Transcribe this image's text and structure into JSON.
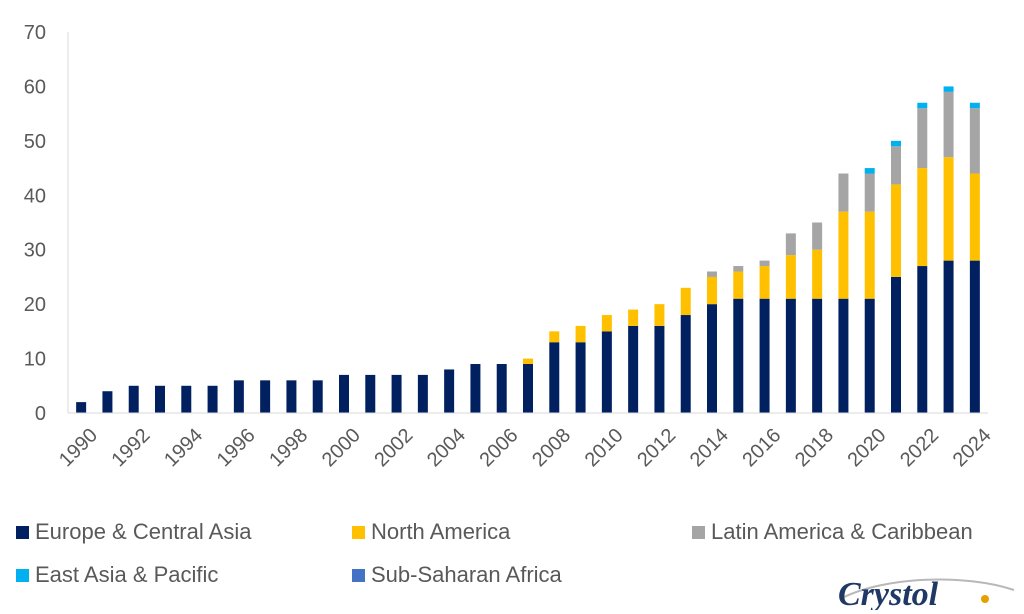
{
  "chart_data": {
    "type": "bar",
    "stacked": true,
    "title": "",
    "xlabel": "",
    "ylabel": "",
    "ylim": [
      0,
      70
    ],
    "yticks": [
      0,
      10,
      20,
      30,
      40,
      50,
      60,
      70
    ],
    "grid": false,
    "legend_position": "bottom",
    "categories": [
      "1990",
      "1991",
      "1992",
      "1993",
      "1994",
      "1995",
      "1996",
      "1997",
      "1998",
      "1999",
      "2000",
      "2001",
      "2002",
      "2003",
      "2004",
      "2005",
      "2006",
      "2007",
      "2008",
      "2009",
      "2010",
      "2011",
      "2012",
      "2013",
      "2014",
      "2015",
      "2016",
      "2017",
      "2018",
      "2019",
      "2020",
      "2021",
      "2022",
      "2023",
      "2024"
    ],
    "tick_labels": [
      "1990",
      "1992",
      "1994",
      "1996",
      "1998",
      "2000",
      "2002",
      "2004",
      "2006",
      "2008",
      "2010",
      "2012",
      "2014",
      "2016",
      "2018",
      "2020",
      "2022",
      "2024"
    ],
    "series": [
      {
        "name": "Europe & Central Asia",
        "color": "#002060",
        "values": [
          2,
          4,
          5,
          5,
          5,
          5,
          6,
          6,
          6,
          6,
          7,
          7,
          7,
          7,
          8,
          9,
          9,
          9,
          13,
          13,
          15,
          16,
          16,
          18,
          20,
          21,
          21,
          21,
          21,
          21,
          21,
          25,
          27,
          28,
          28
        ]
      },
      {
        "name": "North America",
        "color": "#FFC000",
        "values": [
          0,
          0,
          0,
          0,
          0,
          0,
          0,
          0,
          0,
          0,
          0,
          0,
          0,
          0,
          0,
          0,
          0,
          1,
          2,
          3,
          3,
          3,
          4,
          5,
          5,
          5,
          6,
          8,
          9,
          16,
          16,
          17,
          18,
          19,
          16
        ]
      },
      {
        "name": "Latin America & Caribbean",
        "color": "#A5A5A5",
        "values": [
          0,
          0,
          0,
          0,
          0,
          0,
          0,
          0,
          0,
          0,
          0,
          0,
          0,
          0,
          0,
          0,
          0,
          0,
          0,
          0,
          0,
          0,
          0,
          0,
          1,
          1,
          1,
          4,
          5,
          7,
          7,
          7,
          11,
          12,
          12
        ]
      },
      {
        "name": "East Asia & Pacific",
        "color": "#00B0F0",
        "values": [
          0,
          0,
          0,
          0,
          0,
          0,
          0,
          0,
          0,
          0,
          0,
          0,
          0,
          0,
          0,
          0,
          0,
          0,
          0,
          0,
          0,
          0,
          0,
          0,
          0,
          0,
          0,
          0,
          0,
          0,
          1,
          1,
          1,
          1,
          1
        ]
      },
      {
        "name": "Sub-Saharan Africa",
        "color": "#4472C4",
        "values": [
          0,
          0,
          0,
          0,
          0,
          0,
          0,
          0,
          0,
          0,
          0,
          0,
          0,
          0,
          0,
          0,
          0,
          0,
          0,
          0,
          0,
          0,
          0,
          0,
          0,
          0,
          0,
          0,
          0,
          0,
          0,
          0,
          0,
          0,
          0
        ]
      }
    ]
  },
  "logo": {
    "text": "Crystol"
  }
}
